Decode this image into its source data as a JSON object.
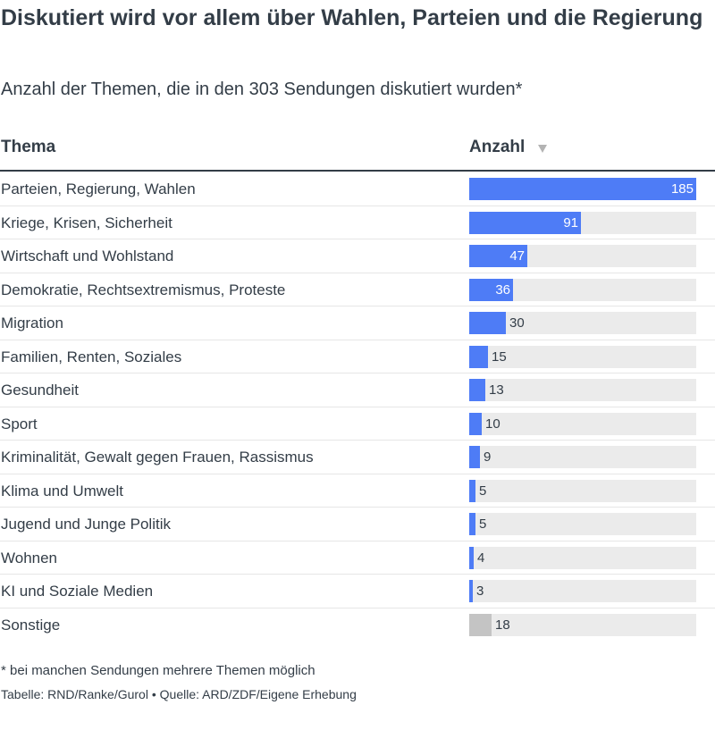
{
  "title": "Diskutiert wird vor allem über Wahlen, Parteien und die Regierung",
  "subtitle": "Anzahl der Themen, die in den 303 Sendungen diskutiert wurden*",
  "table_header": {
    "topic": "Thema",
    "count": "Anzahl"
  },
  "colors": {
    "bar": "#4e7cf6",
    "bar_other": "#c4c4c4",
    "track": "#ebebeb",
    "text": "#333d47"
  },
  "chart_data": {
    "type": "bar",
    "orientation": "horizontal",
    "categories": [
      "Parteien, Regierung, Wahlen",
      "Kriege, Krisen, Sicherheit",
      "Wirtschaft und Wohlstand",
      "Demokratie, Rechtsextremismus, Proteste",
      "Migration",
      "Familien, Renten, Soziales",
      "Gesundheit",
      "Sport",
      "Kriminalität, Gewalt gegen Frauen, Rassismus",
      "Klima und Umwelt",
      "Jugend und Junge Politik",
      "Wohnen",
      "KI und Soziale Medien",
      "Sonstige"
    ],
    "values": [
      185,
      91,
      47,
      36,
      30,
      15,
      13,
      10,
      9,
      5,
      5,
      4,
      3,
      18
    ],
    "highlight": [
      true,
      true,
      true,
      true,
      true,
      true,
      true,
      true,
      true,
      true,
      true,
      true,
      true,
      false
    ],
    "xlim": [
      0,
      185
    ],
    "sorted_by": "Anzahl",
    "sort_direction": "descending"
  },
  "footnote": "* bei manchen Sendungen mehrere Themen möglich",
  "source": "Tabelle: RND/Ranke/Gurol • Quelle: ARD/ZDF/Eigene Erhebung"
}
